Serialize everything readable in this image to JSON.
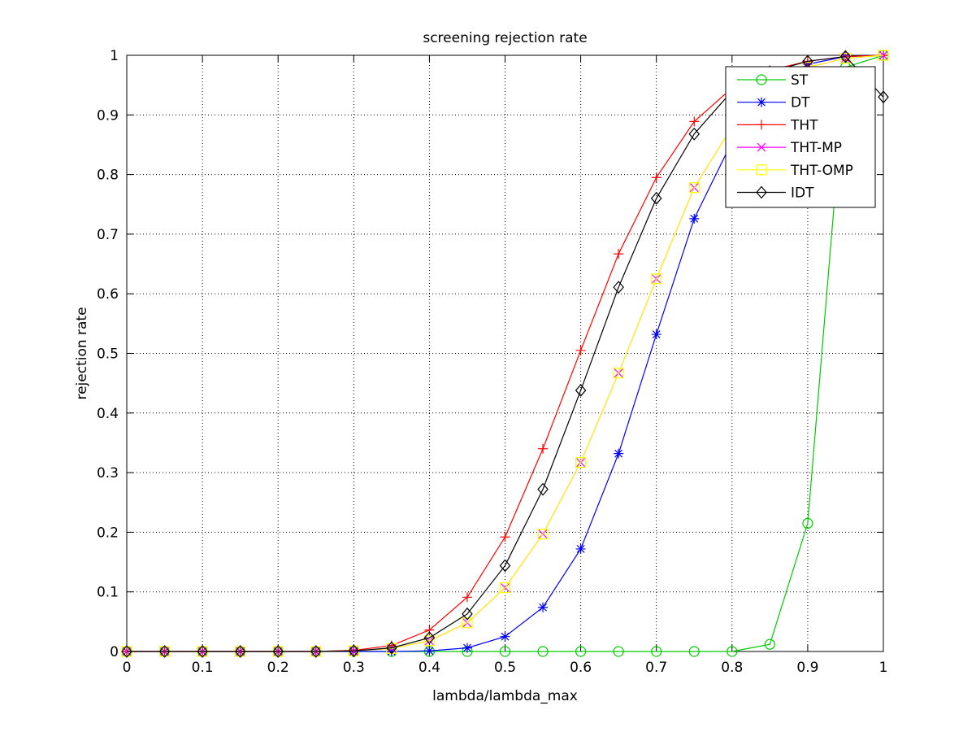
{
  "chart_data": {
    "type": "line",
    "title": "screening rejection rate",
    "xlabel": "lambda/lambda_max",
    "ylabel": "rejection rate",
    "xlim": [
      0,
      1
    ],
    "ylim": [
      0,
      1
    ],
    "grid": true,
    "legend_position": "top-right",
    "x_ticks": [
      "0",
      "0.1",
      "0.2",
      "0.3",
      "0.4",
      "0.5",
      "0.6",
      "0.7",
      "0.8",
      "0.9",
      "1"
    ],
    "y_ticks": [
      "0",
      "0.1",
      "0.2",
      "0.3",
      "0.4",
      "0.5",
      "0.6",
      "0.7",
      "0.8",
      "0.9",
      "1"
    ],
    "x": [
      0,
      0.05,
      0.1,
      0.15,
      0.2,
      0.25,
      0.3,
      0.35,
      0.4,
      0.45,
      0.5,
      0.55,
      0.6,
      0.65,
      0.7,
      0.75,
      0.8,
      0.85,
      0.9,
      0.95,
      1
    ],
    "series": [
      {
        "name": "ST",
        "color": "#00cc00",
        "marker": "circle",
        "values": [
          0,
          0,
          0,
          0,
          0,
          0,
          0,
          0,
          0,
          0,
          0,
          0,
          0,
          0,
          0,
          0,
          0,
          0.012,
          0.215,
          0.98,
          1.0
        ]
      },
      {
        "name": "DT",
        "color": "#0000ff",
        "marker": "star",
        "values": [
          0,
          0,
          0,
          0,
          0,
          0,
          0,
          0,
          0.001,
          0.006,
          0.025,
          0.074,
          0.172,
          0.332,
          0.532,
          0.726,
          0.855,
          0.945,
          0.985,
          0.998,
          1.0
        ]
      },
      {
        "name": "THT",
        "color": "#ff0000",
        "marker": "plus",
        "values": [
          0,
          0,
          0,
          0,
          0,
          0,
          0.002,
          0.01,
          0.036,
          0.091,
          0.192,
          0.34,
          0.505,
          0.667,
          0.795,
          0.889,
          0.945,
          0.975,
          0.99,
          0.998,
          1.0
        ]
      },
      {
        "name": "THT-MP",
        "color": "#ff00ff",
        "marker": "x",
        "values": [
          0,
          0,
          0,
          0,
          0,
          0,
          0.001,
          0.005,
          0.018,
          0.048,
          0.107,
          0.197,
          0.317,
          0.467,
          0.625,
          0.778,
          0.88,
          0.945,
          0.98,
          0.995,
          1.0
        ]
      },
      {
        "name": "THT-OMP",
        "color": "#ffff00",
        "marker": "square",
        "values": [
          0,
          0,
          0,
          0,
          0,
          0,
          0.001,
          0.005,
          0.018,
          0.048,
          0.107,
          0.197,
          0.317,
          0.467,
          0.625,
          0.778,
          0.88,
          0.945,
          0.98,
          0.995,
          1.0
        ]
      },
      {
        "name": "IDT",
        "color": "#000000",
        "marker": "diamond",
        "values": [
          0,
          0,
          0,
          0,
          0,
          0,
          0.001,
          0.006,
          0.023,
          0.063,
          0.144,
          0.272,
          0.438,
          0.611,
          0.76,
          0.868,
          0.94,
          0.972,
          0.99,
          0.998,
          0.93
        ]
      }
    ]
  }
}
